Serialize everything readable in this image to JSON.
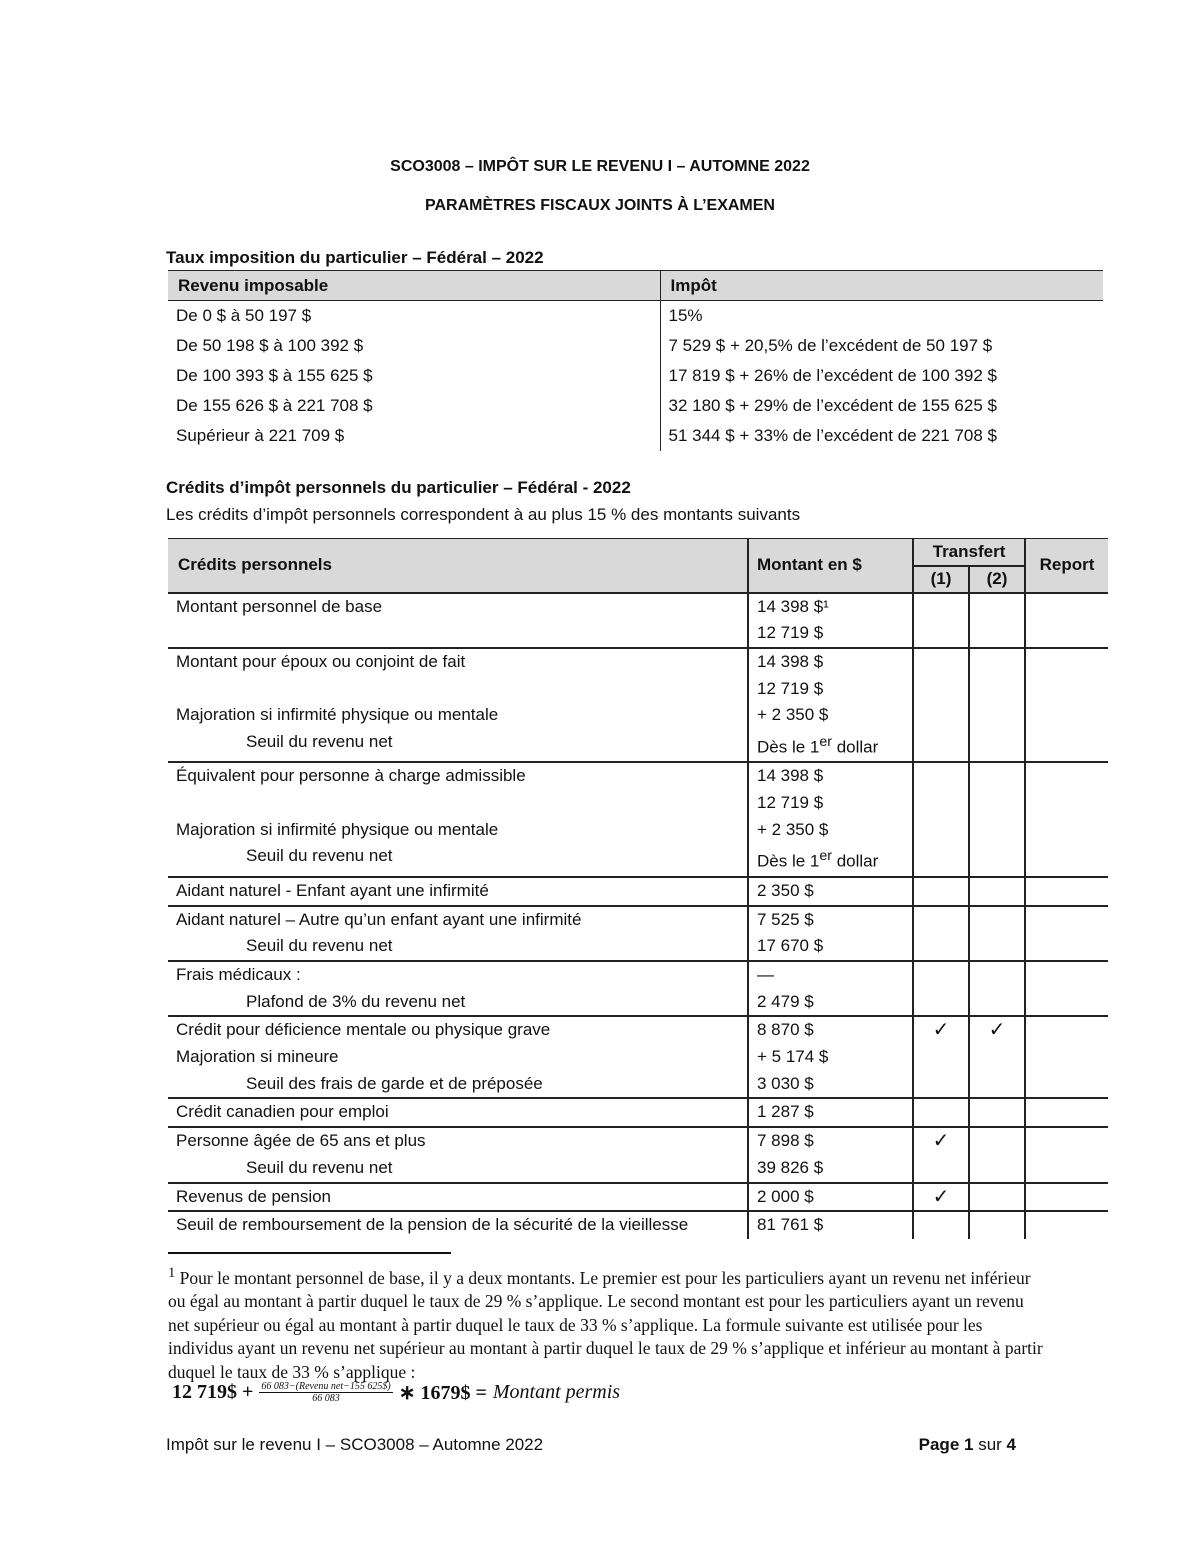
{
  "header": {
    "title": "SCO3008 – IMPÔT SUR LE REVENU I – AUTOMNE 2022",
    "subtitle": "PARAMÈTRES FISCAUX JOINTS À L’EXAMEN"
  },
  "tax_table": {
    "heading": "Taux imposition du particulier – Fédéral – 2022",
    "columns": [
      "Revenu imposable",
      "Impôt"
    ],
    "rows": [
      [
        "De 0 $ à 50 197 $",
        "15%"
      ],
      [
        "De 50 198 $ à 100 392 $",
        "7 529 $ + 20,5% de l’excédent de 50 197 $"
      ],
      [
        "De 100 393 $ à 155 625 $",
        "17 819 $ + 26% de l’excédent de 100 392 $"
      ],
      [
        "De 155 626 $ à 221 708 $",
        "32 180 $ + 29% de l’excédent de 155 625 $"
      ],
      [
        "Supérieur à 221 709 $",
        "51 344 $ + 33% de l’excédent de 221 708 $"
      ]
    ]
  },
  "credits": {
    "heading": "Crédits d’impôt personnels du particulier – Fédéral - 2022",
    "intro": "Les crédits d’impôt personnels correspondent à au plus 15 % des montants suivants",
    "columns": {
      "credit": "Crédits personnels",
      "amount": "Montant en $",
      "transfer": "Transfert",
      "t1": "(1)",
      "t2": "(2)",
      "carry": "Report"
    },
    "check": "✓",
    "groups": [
      {
        "labels": [
          "Montant personnel de base",
          ""
        ],
        "amounts": [
          "14 398 $¹",
          "12 719 $"
        ],
        "t1": false,
        "t2": false
      },
      {
        "labels": [
          "Montant pour époux ou conjoint de fait",
          "",
          "Majoration si infirmité physique ou mentale",
          "Seuil du revenu net"
        ],
        "amounts": [
          "14 398 $",
          "12 719 $",
          "+ 2 350 $",
          "Dès le 1er dollar"
        ],
        "t1": false,
        "t2": false
      },
      {
        "labels": [
          "Équivalent pour personne à charge admissible",
          "",
          "Majoration si infirmité physique ou mentale",
          "Seuil du revenu net"
        ],
        "amounts": [
          "14 398 $",
          "12 719 $",
          "+ 2 350 $",
          "Dès le 1er dollar"
        ],
        "t1": false,
        "t2": false
      },
      {
        "labels": [
          "Aidant naturel - Enfant ayant une infirmité"
        ],
        "amounts": [
          "2 350 $"
        ],
        "t1": false,
        "t2": false
      },
      {
        "labels": [
          "Aidant naturel – Autre qu’un enfant ayant une infirmité",
          "Seuil du revenu net"
        ],
        "amounts": [
          "7 525 $",
          "17 670 $"
        ],
        "t1": false,
        "t2": false
      },
      {
        "labels": [
          "Frais médicaux :",
          "Plafond de 3% du revenu net"
        ],
        "amounts": [
          "—",
          "2 479 $"
        ],
        "t1": false,
        "t2": false
      },
      {
        "labels": [
          "Crédit pour déficience mentale ou physique grave",
          "Majoration si mineure",
          "Seuil des frais de garde et de préposée"
        ],
        "amounts": [
          "8 870 $",
          "+ 5 174 $",
          "3 030 $"
        ],
        "t1": true,
        "t2": true
      },
      {
        "labels": [
          "Crédit canadien pour emploi"
        ],
        "amounts": [
          "1 287 $"
        ],
        "t1": false,
        "t2": false
      },
      {
        "labels": [
          "Personne âgée de 65 ans et plus",
          "Seuil du revenu net"
        ],
        "amounts": [
          "7 898 $",
          "39 826 $"
        ],
        "t1": true,
        "t2": false
      },
      {
        "labels": [
          "Revenus de pension"
        ],
        "amounts": [
          "2 000 $"
        ],
        "t1": true,
        "t2": false
      },
      {
        "labels": [
          "Seuil de remboursement de la pension de la sécurité de la vieillesse"
        ],
        "amounts": [
          "81 761 $"
        ],
        "t1": false,
        "t2": false
      }
    ]
  },
  "footnote": {
    "mark": "1",
    "text": "Pour le montant personnel de base, il y a deux montants. Le premier est pour les particuliers ayant un revenu net inférieur ou égal au montant à partir duquel le taux de 29 % s’applique. Le second montant est pour les particuliers ayant un revenu net supérieur ou égal au montant à partir duquel le taux de 33 % s’applique. La formule suivante est utilisée pour les individus ayant un revenu net supérieur au montant à partir duquel le taux de 29 % s’applique et inférieur au montant à partir duquel le taux de 33 % s’applique :",
    "formula": {
      "base": "12 719$ +",
      "numerator": "66 083−(Revenu net−155 625$)",
      "denominator": "66 083",
      "multiplier": "∗ 1679$ =",
      "result": "Montant permis"
    }
  },
  "footer": {
    "left": "Impôt sur le revenu I – SCO3008 – Automne 2022",
    "page_prefix": "Page ",
    "page": "1",
    "page_mid": " sur ",
    "total": "4"
  }
}
